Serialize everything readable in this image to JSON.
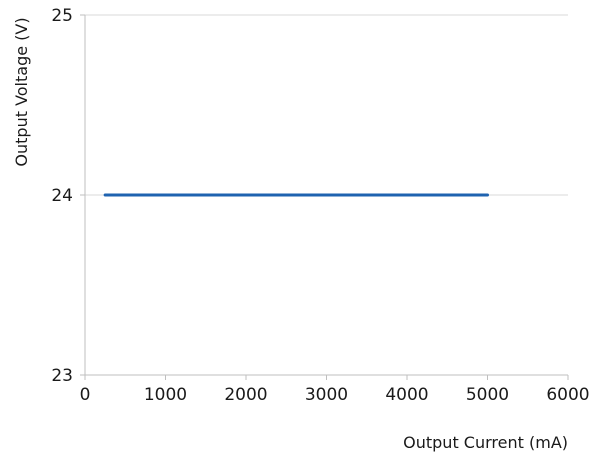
{
  "chart_data": {
    "type": "line",
    "xlabel": "Output Current (mA)",
    "ylabel": "Output Voltage (V)",
    "xlim": [
      0,
      6000
    ],
    "ylim": [
      23,
      25
    ],
    "x_ticks": [
      0,
      1000,
      2000,
      3000,
      4000,
      5000,
      6000
    ],
    "y_ticks": [
      23,
      24,
      25
    ],
    "grid": "horizontal",
    "legend": "none",
    "series": [
      {
        "color": "#1f63b0",
        "x": [
          250,
          5000
        ],
        "y": [
          24,
          24
        ]
      }
    ]
  }
}
